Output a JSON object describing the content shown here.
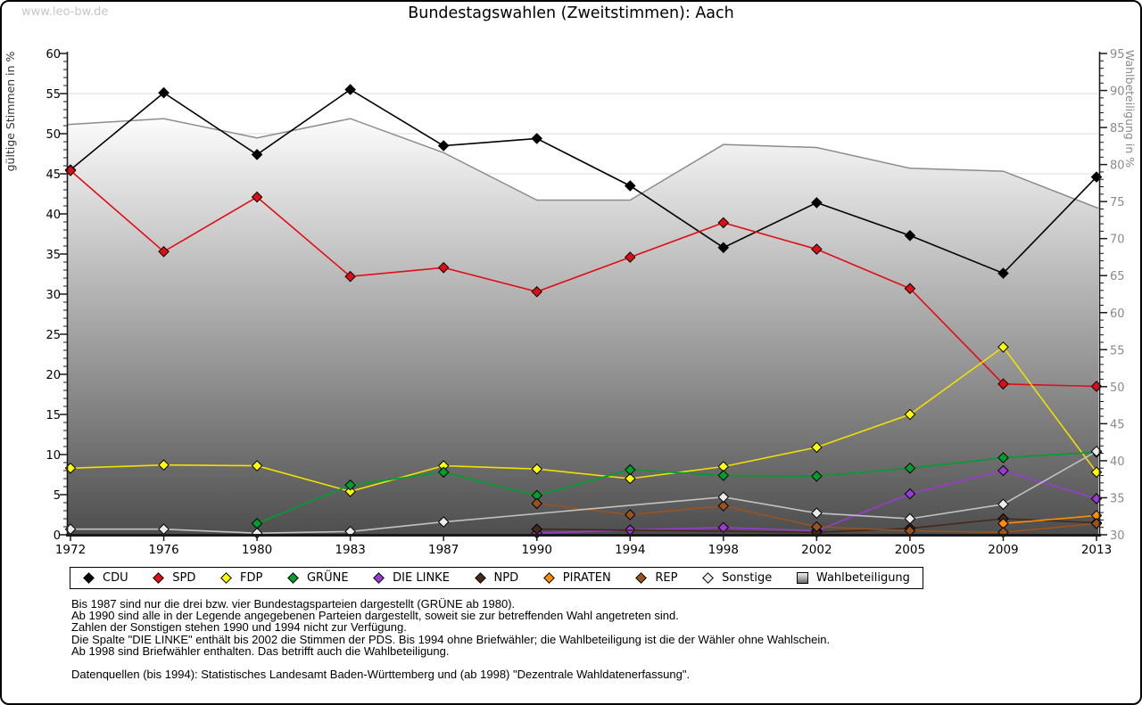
{
  "watermark": "www.leo-bw.de",
  "title": "Bundestagswahlen (Zweitstimmen): Aach",
  "axes": {
    "left_title": "gültige Stimmen in %",
    "right_title": "Wahlbeteiligung in %",
    "left_min": 0,
    "left_max": 60,
    "left_step": 5,
    "right_min": 30,
    "right_max": 95,
    "right_step": 5,
    "grid": true
  },
  "colors": {
    "grid": "#dcdcdc",
    "axis": "#1a1a1a",
    "right_label": "#8a8a8a",
    "turnout_line": "#8c8c8c",
    "area_top": "#ffffff",
    "area_bottom": "#4e4e4e"
  },
  "chart_data": {
    "type": "line",
    "x": [
      1972,
      1976,
      1980,
      1983,
      1987,
      1990,
      1994,
      1998,
      2002,
      2005,
      2009,
      2013
    ],
    "xlabel": "",
    "ylabel_left": "gültige Stimmen in %",
    "ylabel_right": "Wahlbeteiligung in %",
    "ylim_left": [
      0,
      60
    ],
    "ylim_right": [
      30,
      95
    ],
    "legend_position": "bottom",
    "series": [
      {
        "name": "CDU",
        "axis": "left",
        "color": "#000000",
        "marker_fill": "#000000",
        "values": [
          45.5,
          55.1,
          47.4,
          55.5,
          48.5,
          49.4,
          43.5,
          35.8,
          41.4,
          37.3,
          32.6,
          44.6
        ]
      },
      {
        "name": "SPD",
        "axis": "left",
        "color": "#e00d15",
        "marker_fill": "#e00d15",
        "values": [
          45.4,
          35.3,
          42.1,
          32.2,
          33.3,
          30.3,
          34.6,
          38.9,
          35.6,
          30.7,
          18.8,
          18.5
        ]
      },
      {
        "name": "FDP",
        "axis": "left",
        "color": "#f0e000",
        "marker_fill": "#ffff00",
        "values": [
          8.3,
          8.7,
          8.6,
          5.4,
          8.6,
          8.2,
          7.0,
          8.5,
          10.9,
          15.0,
          23.4,
          7.8
        ]
      },
      {
        "name": "GRÜNE",
        "axis": "left",
        "color": "#009e2f",
        "marker_fill": "#009e2f",
        "values": [
          null,
          null,
          1.4,
          6.2,
          7.8,
          4.9,
          8.1,
          7.4,
          7.3,
          8.3,
          9.6,
          10.3
        ]
      },
      {
        "name": "DIE LINKE",
        "axis": "left",
        "color": "#9a3bd2",
        "marker_fill": "#9a3bd2",
        "values": [
          null,
          null,
          null,
          null,
          null,
          0.2,
          0.6,
          0.9,
          0.5,
          5.1,
          8.0,
          4.5
        ]
      },
      {
        "name": "NPD",
        "axis": "left",
        "color": "#46281a",
        "marker_fill": "#46281a",
        "values": [
          null,
          null,
          null,
          null,
          null,
          0.7,
          null,
          null,
          0.3,
          0.8,
          2.0,
          1.5
        ]
      },
      {
        "name": "PIRATEN",
        "axis": "left",
        "color": "#ff8c00",
        "marker_fill": "#ff8c00",
        "values": [
          null,
          null,
          null,
          null,
          null,
          null,
          null,
          null,
          null,
          null,
          1.4,
          2.4
        ]
      },
      {
        "name": "REP",
        "axis": "left",
        "color": "#9a531f",
        "marker_fill": "#9a531f",
        "values": [
          null,
          null,
          null,
          null,
          null,
          3.9,
          2.5,
          3.6,
          1.0,
          0.5,
          0.3,
          1.4
        ]
      },
      {
        "name": "Sonstige",
        "axis": "left",
        "color": "#c2c2c2",
        "marker_fill": "#ececec",
        "values": [
          0.7,
          0.7,
          0.2,
          0.4,
          1.6,
          null,
          null,
          4.7,
          2.7,
          2.0,
          3.8,
          10.4
        ]
      },
      {
        "name": "Wahlbeteiligung",
        "axis": "right",
        "type": "area",
        "color": "#8c8c8c",
        "values": [
          85.4,
          86.2,
          83.6,
          86.2,
          81.6,
          75.2,
          75.2,
          82.7,
          82.3,
          79.5,
          79.1,
          74.1
        ]
      }
    ]
  },
  "legend": [
    {
      "label": "CDU",
      "marker": "diamond",
      "color": "#000000"
    },
    {
      "label": "SPD",
      "marker": "diamond",
      "color": "#e00d15"
    },
    {
      "label": "FDP",
      "marker": "diamond",
      "color": "#ffff00"
    },
    {
      "label": "GRÜNE",
      "marker": "diamond",
      "color": "#009e2f"
    },
    {
      "label": "DIE LINKE",
      "marker": "diamond",
      "color": "#9a3bd2"
    },
    {
      "label": "NPD",
      "marker": "diamond",
      "color": "#46281a"
    },
    {
      "label": "PIRATEN",
      "marker": "diamond",
      "color": "#ff8c00"
    },
    {
      "label": "REP",
      "marker": "diamond",
      "color": "#9a531f"
    },
    {
      "label": "Sonstige",
      "marker": "diamond",
      "color": "#ececec"
    },
    {
      "label": "Wahlbeteiligung",
      "marker": "area",
      "color": "#9a9a9a"
    }
  ],
  "footnotes": [
    "Bis 1987 sind nur die drei bzw. vier Bundestagsparteien dargestellt (GRÜNE ab 1980).",
    "Ab 1990 sind alle in der Legende angegebenen Parteien dargestellt, soweit sie zur betreffenden Wahl angetreten sind.",
    "Zahlen der Sonstigen stehen 1990 und 1994 nicht zur Verfügung.",
    "Die Spalte \"DIE LINKE\" enthält bis 2002 die Stimmen der PDS. Bis 1994 ohne Briefwähler; die Wahlbeteiligung ist die der Wähler ohne Wahlschein.",
    "Ab 1998 sind Briefwähler enthalten. Das betrifft auch die Wahlbeteiligung."
  ],
  "source": "Datenquellen (bis 1994): Statistisches Landesamt Baden-Württemberg und (ab 1998) \"Dezentrale Wahldatenerfassung\"."
}
